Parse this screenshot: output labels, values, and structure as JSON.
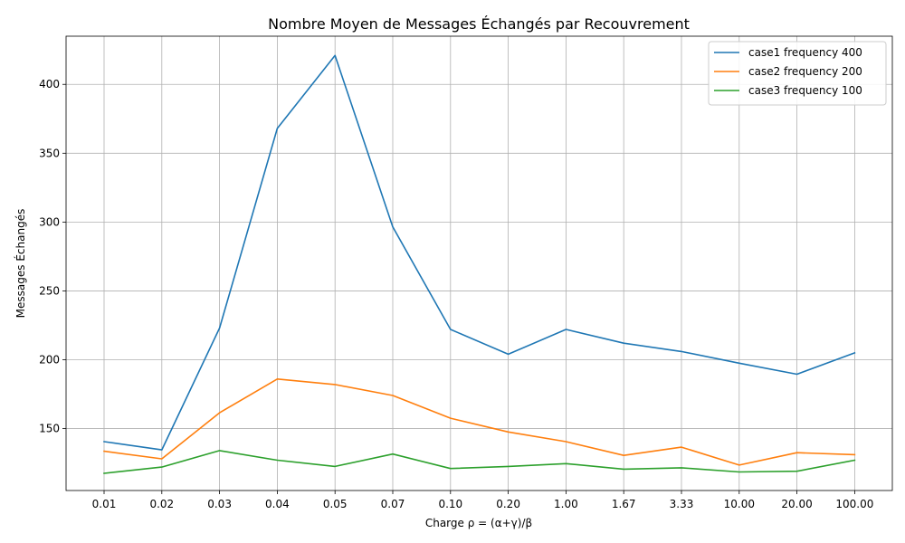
{
  "chart_data": {
    "type": "line",
    "title": "Nombre Moyen de Messages Échangés par Recouvrement",
    "xlabel": "Charge ρ = (α+γ)/β",
    "ylabel": "Messages Échangés",
    "categories": [
      "0.01",
      "0.02",
      "0.03",
      "0.04",
      "0.05",
      "0.07",
      "0.10",
      "0.20",
      "1.00",
      "1.67",
      "3.33",
      "10.00",
      "20.00",
      "100.00"
    ],
    "ylim": [
      105,
      435
    ],
    "yticks": [
      150,
      200,
      250,
      300,
      350,
      400
    ],
    "grid": true,
    "legend_position": "top-right",
    "series": [
      {
        "name": "case1 frequency 400",
        "color": "#1f77b4",
        "values": [
          140.5,
          134.5,
          223,
          368,
          421,
          296.5,
          222,
          204,
          222,
          212,
          206,
          197.5,
          189.5,
          205
        ]
      },
      {
        "name": "case2 frequency 200",
        "color": "#ff7f0e",
        "values": [
          133.5,
          128,
          161.5,
          186,
          182,
          174,
          157.5,
          147.5,
          140.5,
          130.5,
          136.5,
          123.5,
          132.5,
          131
        ]
      },
      {
        "name": "case3 frequency 100",
        "color": "#2ca02c",
        "values": [
          117.5,
          122,
          134,
          127,
          122.5,
          131.5,
          121,
          122.5,
          124.5,
          120.5,
          121.5,
          118.5,
          119,
          127
        ]
      }
    ]
  }
}
